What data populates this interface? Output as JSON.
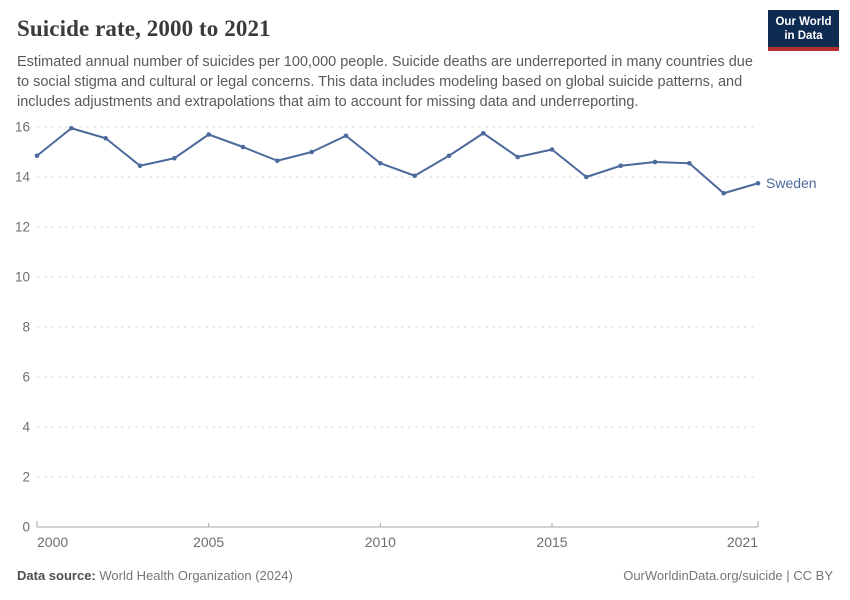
{
  "header": {
    "title": "Suicide rate, 2000 to 2021",
    "subtitle": "Estimated annual number of suicides per 100,000 people. Suicide deaths are underreported in many countries due to social stigma and cultural or legal concerns. This data includes modeling based on global suicide patterns, and includes adjustments and extrapolations that aim to account for missing data and underreporting.",
    "logo": {
      "line1": "Our World",
      "line2": "in Data",
      "bg_color": "#0e2b52",
      "accent_color": "#b23030",
      "text_color": "#ffffff"
    }
  },
  "chart_data": {
    "type": "line",
    "title": "Suicide rate, 2000 to 2021",
    "xlabel": "",
    "ylabel": "",
    "x": [
      2000,
      2001,
      2002,
      2003,
      2004,
      2005,
      2006,
      2007,
      2008,
      2009,
      2010,
      2011,
      2012,
      2013,
      2014,
      2015,
      2016,
      2017,
      2018,
      2019,
      2020,
      2021
    ],
    "series": [
      {
        "name": "Sweden",
        "color": "#4c6a9c",
        "values": [
          14.85,
          15.95,
          15.55,
          14.45,
          14.75,
          15.7,
          15.2,
          14.65,
          15.0,
          15.65,
          14.55,
          14.05,
          14.85,
          15.75,
          14.8,
          15.1,
          14.0,
          14.45,
          14.6,
          14.55,
          13.35,
          13.75
        ]
      }
    ],
    "xlim": [
      2000,
      2021
    ],
    "ylim": [
      0,
      16
    ],
    "yticks": [
      0,
      2,
      4,
      6,
      8,
      10,
      12,
      14,
      16
    ],
    "xticks": [
      2000,
      2005,
      2010,
      2015,
      2021
    ],
    "xtick_labels": [
      "2000",
      "2005",
      "2010",
      "2015",
      "2021"
    ],
    "grid": "horizontal-dashed",
    "legend_position": "end-of-line-label",
    "colors": {
      "grid": "#dcdcdc",
      "axis": "#a6a6a6",
      "tick_text": "#6e6e6e",
      "line": "#4c6a9c",
      "entity_label": "#4c6a9c"
    }
  },
  "footer": {
    "source_label": "Data source:",
    "source_value": " World Health Organization (2024)",
    "attribution": "OurWorldinData.org/suicide | CC BY"
  }
}
